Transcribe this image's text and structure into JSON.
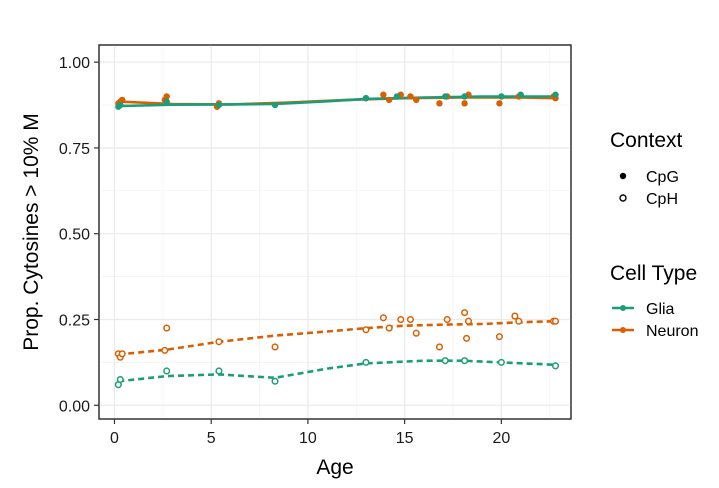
{
  "chart_data": {
    "type": "scatter",
    "xlabel": "Age",
    "ylabel": "Prop. Cytosines > 10% M",
    "xlim": [
      -0.8,
      23.6
    ],
    "ylim": [
      -0.04,
      1.05
    ],
    "xticks": [
      0,
      5,
      10,
      15,
      20
    ],
    "xtick_labels": [
      "0",
      "5",
      "10",
      "15",
      "20"
    ],
    "yticks": [
      0.0,
      0.25,
      0.5,
      0.75,
      1.0
    ],
    "ytick_labels": [
      "0.00",
      "0.25",
      "0.50",
      "0.75",
      "1.00"
    ],
    "grid": true,
    "legend_position": "right",
    "legends": [
      {
        "title": "Context",
        "items": [
          {
            "label": "CpG",
            "marker": "filled-circle"
          },
          {
            "label": "CpH",
            "marker": "open-circle"
          }
        ]
      },
      {
        "title": "Cell Type",
        "items": [
          {
            "label": "Glia",
            "color": "#1b9e77"
          },
          {
            "label": "Neuron",
            "color": "#d95f02"
          }
        ]
      }
    ],
    "series": [
      {
        "name": "Neuron CpG",
        "color": "#d95f02",
        "marker": "filled",
        "line": "solid",
        "points": [
          [
            0.2,
            0.88
          ],
          [
            0.3,
            0.885
          ],
          [
            0.4,
            0.89
          ],
          [
            2.6,
            0.89
          ],
          [
            2.7,
            0.9
          ],
          [
            5.3,
            0.87
          ],
          [
            5.4,
            0.88
          ],
          [
            13,
            0.895
          ],
          [
            13.9,
            0.905
          ],
          [
            14.2,
            0.89
          ],
          [
            14.8,
            0.905
          ],
          [
            15.3,
            0.9
          ],
          [
            15.6,
            0.89
          ],
          [
            16.8,
            0.88
          ],
          [
            17.2,
            0.9
          ],
          [
            18.1,
            0.88
          ],
          [
            18.3,
            0.905
          ],
          [
            19.9,
            0.88
          ],
          [
            20.9,
            0.9
          ],
          [
            22.7,
            0.9
          ],
          [
            22.8,
            0.895
          ]
        ],
        "trend": [
          [
            0.2,
            0.885
          ],
          [
            3,
            0.878
          ],
          [
            6,
            0.877
          ],
          [
            9,
            0.882
          ],
          [
            12,
            0.89
          ],
          [
            15,
            0.895
          ],
          [
            18,
            0.897
          ],
          [
            21,
            0.897
          ],
          [
            22.8,
            0.895
          ]
        ]
      },
      {
        "name": "Glia CpG",
        "color": "#1b9e77",
        "marker": "filled",
        "line": "solid",
        "points": [
          [
            0.2,
            0.87
          ],
          [
            0.3,
            0.875
          ],
          [
            2.7,
            0.885
          ],
          [
            5.4,
            0.875
          ],
          [
            8.3,
            0.875
          ],
          [
            13,
            0.895
          ],
          [
            14.6,
            0.9
          ],
          [
            17.1,
            0.9
          ],
          [
            18.1,
            0.9
          ],
          [
            20,
            0.9
          ],
          [
            21,
            0.905
          ],
          [
            22.8,
            0.905
          ]
        ],
        "trend": [
          [
            0.2,
            0.872
          ],
          [
            3,
            0.876
          ],
          [
            6,
            0.877
          ],
          [
            8.3,
            0.878
          ],
          [
            11,
            0.886
          ],
          [
            13,
            0.893
          ],
          [
            16,
            0.897
          ],
          [
            19,
            0.9
          ],
          [
            22.8,
            0.9
          ]
        ]
      },
      {
        "name": "Neuron CpH",
        "color": "#d95f02",
        "marker": "open",
        "line": "dashed",
        "points": [
          [
            0.2,
            0.15
          ],
          [
            0.3,
            0.14
          ],
          [
            0.4,
            0.15
          ],
          [
            2.6,
            0.16
          ],
          [
            2.7,
            0.225
          ],
          [
            5.4,
            0.185
          ],
          [
            8.3,
            0.17
          ],
          [
            13,
            0.22
          ],
          [
            13.9,
            0.255
          ],
          [
            14.2,
            0.225
          ],
          [
            14.8,
            0.25
          ],
          [
            15.3,
            0.25
          ],
          [
            15.6,
            0.21
          ],
          [
            16.8,
            0.17
          ],
          [
            17.2,
            0.25
          ],
          [
            18.1,
            0.27
          ],
          [
            18.2,
            0.195
          ],
          [
            18.3,
            0.245
          ],
          [
            19.9,
            0.2
          ],
          [
            20.7,
            0.26
          ],
          [
            20.9,
            0.245
          ],
          [
            22.7,
            0.245
          ],
          [
            22.8,
            0.245
          ]
        ],
        "trend": [
          [
            0.2,
            0.148
          ],
          [
            2.7,
            0.162
          ],
          [
            5.4,
            0.185
          ],
          [
            8.3,
            0.203
          ],
          [
            11,
            0.215
          ],
          [
            13,
            0.225
          ],
          [
            15,
            0.232
          ],
          [
            17,
            0.235
          ],
          [
            19,
            0.237
          ],
          [
            21,
            0.242
          ],
          [
            22.8,
            0.245
          ]
        ]
      },
      {
        "name": "Glia CpH",
        "color": "#1b9e77",
        "marker": "open",
        "line": "dashed",
        "points": [
          [
            0.2,
            0.06
          ],
          [
            0.3,
            0.075
          ],
          [
            2.7,
            0.1
          ],
          [
            5.4,
            0.1
          ],
          [
            8.3,
            0.07
          ],
          [
            13,
            0.125
          ],
          [
            17.1,
            0.13
          ],
          [
            18.1,
            0.13
          ],
          [
            20,
            0.125
          ],
          [
            22.8,
            0.115
          ]
        ],
        "trend": [
          [
            0.2,
            0.07
          ],
          [
            2.7,
            0.085
          ],
          [
            5.4,
            0.09
          ],
          [
            8.3,
            0.08
          ],
          [
            11,
            0.107
          ],
          [
            13,
            0.122
          ],
          [
            16,
            0.13
          ],
          [
            18,
            0.13
          ],
          [
            20,
            0.125
          ],
          [
            22.8,
            0.118
          ]
        ]
      }
    ]
  }
}
